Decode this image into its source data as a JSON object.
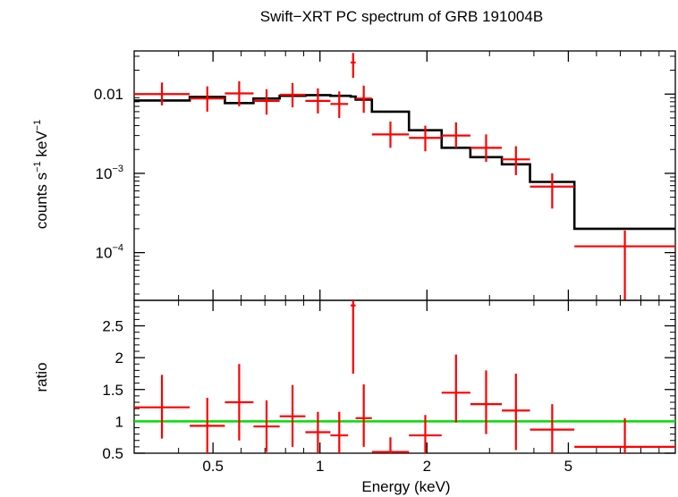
{
  "chart_data": {
    "type": "scatter",
    "title": "Swift−XRT PC spectrum of GRB 191004B",
    "xlabel": "Energy (keV)",
    "x_scale": "log",
    "xlim": [
      0.3,
      10
    ],
    "x_ticks": [
      0.5,
      1,
      2,
      5
    ],
    "x_tick_labels": [
      "0.5",
      "1",
      "2",
      "5"
    ],
    "colors": {
      "data": "#ff0000",
      "model": "#000000",
      "unity": "#00dd00"
    },
    "top": {
      "ylabel_base": "counts s",
      "ylabel_exp1": "−1",
      "ylabel_mid": " keV",
      "ylabel_exp2": "−1",
      "y_scale": "log",
      "ylim": [
        2.5e-05,
        0.035
      ],
      "y_tick_labels": [
        {
          "value": 0.01,
          "base": "0.01",
          "exp": ""
        },
        {
          "value": 0.001,
          "base": "10",
          "exp": "−3"
        },
        {
          "value": 0.0001,
          "base": "10",
          "exp": "−4"
        }
      ],
      "data": [
        {
          "xlo": 0.3,
          "xhi": 0.43,
          "y": 0.01,
          "ylo": 0.0072,
          "yhi": 0.014
        },
        {
          "xlo": 0.43,
          "xhi": 0.54,
          "y": 0.0088,
          "ylo": 0.006,
          "yhi": 0.0125
        },
        {
          "xlo": 0.54,
          "xhi": 0.65,
          "y": 0.0102,
          "ylo": 0.007,
          "yhi": 0.0145
        },
        {
          "xlo": 0.65,
          "xhi": 0.77,
          "y": 0.0082,
          "ylo": 0.0055,
          "yhi": 0.0115
        },
        {
          "xlo": 0.77,
          "xhi": 0.91,
          "y": 0.0098,
          "ylo": 0.0068,
          "yhi": 0.0138
        },
        {
          "xlo": 0.91,
          "xhi": 1.07,
          "y": 0.0082,
          "ylo": 0.0057,
          "yhi": 0.0118
        },
        {
          "xlo": 1.07,
          "xhi": 1.2,
          "y": 0.0075,
          "ylo": 0.005,
          "yhi": 0.0108
        },
        {
          "xlo": 1.22,
          "xhi": 1.26,
          "y": 0.025,
          "ylo": 0.016,
          "yhi": 0.033
        },
        {
          "xlo": 1.26,
          "xhi": 1.4,
          "y": 0.0088,
          "ylo": 0.0058,
          "yhi": 0.0128
        },
        {
          "xlo": 1.4,
          "xhi": 1.78,
          "y": 0.0031,
          "ylo": 0.0021,
          "yhi": 0.0045
        },
        {
          "xlo": 1.78,
          "xhi": 2.2,
          "y": 0.0028,
          "ylo": 0.0019,
          "yhi": 0.004
        },
        {
          "xlo": 2.2,
          "xhi": 2.65,
          "y": 0.003,
          "ylo": 0.0021,
          "yhi": 0.0044
        },
        {
          "xlo": 2.65,
          "xhi": 3.25,
          "y": 0.0021,
          "ylo": 0.0014,
          "yhi": 0.0031
        },
        {
          "xlo": 3.25,
          "xhi": 3.9,
          "y": 0.0015,
          "ylo": 0.00095,
          "yhi": 0.0022
        },
        {
          "xlo": 3.9,
          "xhi": 5.2,
          "y": 0.00068,
          "ylo": 0.00036,
          "yhi": 0.001
        },
        {
          "xlo": 5.2,
          "xhi": 10.0,
          "y": 0.00012,
          "ylo": 2.5e-05,
          "yhi": 0.00019
        }
      ],
      "model_step": [
        {
          "xlo": 0.3,
          "xhi": 0.43,
          "y": 0.0083
        },
        {
          "xlo": 0.43,
          "xhi": 0.54,
          "y": 0.0092
        },
        {
          "xlo": 0.54,
          "xhi": 0.65,
          "y": 0.0077
        },
        {
          "xlo": 0.65,
          "xhi": 0.77,
          "y": 0.0088
        },
        {
          "xlo": 0.77,
          "xhi": 0.91,
          "y": 0.0095
        },
        {
          "xlo": 0.91,
          "xhi": 1.07,
          "y": 0.0097
        },
        {
          "xlo": 1.07,
          "xhi": 1.22,
          "y": 0.0095
        },
        {
          "xlo": 1.22,
          "xhi": 1.26,
          "y": 0.0093
        },
        {
          "xlo": 1.26,
          "xhi": 1.4,
          "y": 0.0085
        },
        {
          "xlo": 1.4,
          "xhi": 1.78,
          "y": 0.006
        },
        {
          "xlo": 1.78,
          "xhi": 2.2,
          "y": 0.0035
        },
        {
          "xlo": 2.2,
          "xhi": 2.65,
          "y": 0.0021
        },
        {
          "xlo": 2.65,
          "xhi": 3.25,
          "y": 0.0016
        },
        {
          "xlo": 3.25,
          "xhi": 3.9,
          "y": 0.0013
        },
        {
          "xlo": 3.9,
          "xhi": 5.2,
          "y": 0.00078
        },
        {
          "xlo": 5.2,
          "xhi": 10.0,
          "y": 0.0002
        }
      ]
    },
    "bottom": {
      "ylabel": "ratio",
      "y_scale": "linear",
      "ylim": [
        0.5,
        2.9
      ],
      "y_ticks": [
        0.5,
        1,
        1.5,
        2,
        2.5
      ],
      "y_tick_labels": [
        "0.5",
        "1",
        "1.5",
        "2",
        "2.5"
      ],
      "unity": 1,
      "data": [
        {
          "xlo": 0.3,
          "xhi": 0.43,
          "y": 1.22,
          "ylo": 0.73,
          "yhi": 1.73
        },
        {
          "xlo": 0.43,
          "xhi": 0.54,
          "y": 0.93,
          "ylo": 0.5,
          "yhi": 1.37
        },
        {
          "xlo": 0.54,
          "xhi": 0.65,
          "y": 1.3,
          "ylo": 0.7,
          "yhi": 1.9
        },
        {
          "xlo": 0.65,
          "xhi": 0.77,
          "y": 0.92,
          "ylo": 0.52,
          "yhi": 1.33
        },
        {
          "xlo": 0.77,
          "xhi": 0.91,
          "y": 1.08,
          "ylo": 0.6,
          "yhi": 1.57
        },
        {
          "xlo": 0.91,
          "xhi": 1.07,
          "y": 0.83,
          "ylo": 0.5,
          "yhi": 1.15
        },
        {
          "xlo": 1.07,
          "xhi": 1.2,
          "y": 0.78,
          "ylo": 0.5,
          "yhi": 1.15
        },
        {
          "xlo": 1.22,
          "xhi": 1.26,
          "y": 2.82,
          "ylo": 1.75,
          "yhi": 2.9
        },
        {
          "xlo": 1.26,
          "xhi": 1.4,
          "y": 1.05,
          "ylo": 0.6,
          "yhi": 1.58
        },
        {
          "xlo": 1.4,
          "xhi": 1.78,
          "y": 0.52,
          "ylo": 0.5,
          "yhi": 0.75
        },
        {
          "xlo": 1.78,
          "xhi": 2.2,
          "y": 0.78,
          "ylo": 0.5,
          "yhi": 1.1
        },
        {
          "xlo": 2.2,
          "xhi": 2.65,
          "y": 1.45,
          "ylo": 0.98,
          "yhi": 2.05
        },
        {
          "xlo": 2.65,
          "xhi": 3.25,
          "y": 1.27,
          "ylo": 0.8,
          "yhi": 1.8
        },
        {
          "xlo": 3.25,
          "xhi": 3.9,
          "y": 1.17,
          "ylo": 0.55,
          "yhi": 1.75
        },
        {
          "xlo": 3.9,
          "xhi": 5.2,
          "y": 0.87,
          "ylo": 0.5,
          "yhi": 1.27
        },
        {
          "xlo": 5.2,
          "xhi": 10.0,
          "y": 0.6,
          "ylo": 0.5,
          "yhi": 1.05
        }
      ]
    }
  }
}
